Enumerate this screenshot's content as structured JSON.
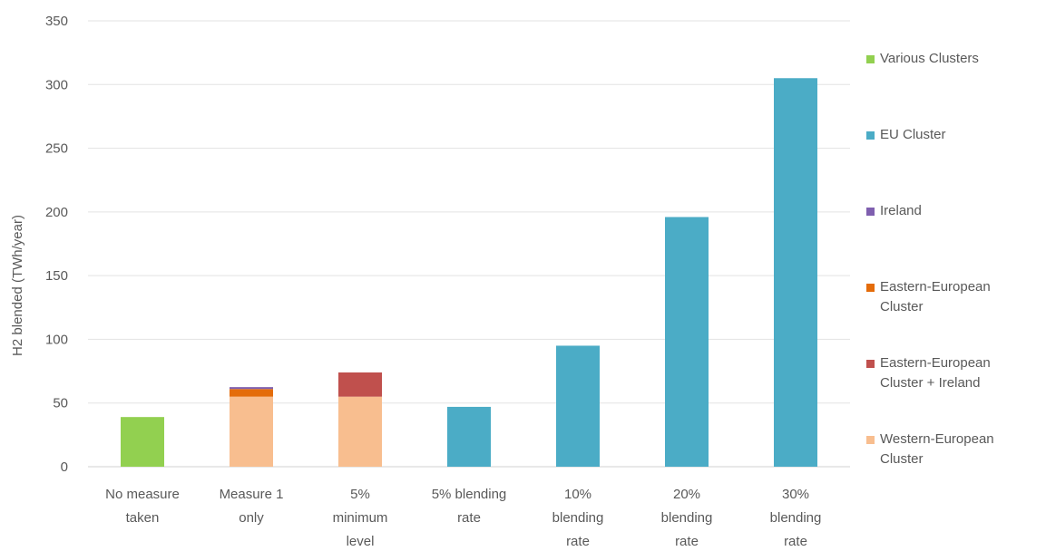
{
  "chart_data": {
    "type": "bar",
    "stacked": true,
    "ylabel": "H2 blended (TWh/year)",
    "ylim": [
      0,
      350
    ],
    "yticks": [
      0,
      50,
      100,
      150,
      200,
      250,
      300,
      350
    ],
    "grid": true,
    "legend_position": "right",
    "categories": [
      [
        "No measure",
        "taken"
      ],
      [
        "Measure 1",
        "only"
      ],
      [
        "5%",
        "minimum",
        "level"
      ],
      [
        "5% blending",
        "rate"
      ],
      [
        "10%",
        "blending",
        "rate"
      ],
      [
        "20%",
        "blending",
        "rate"
      ],
      [
        "30%",
        "blending",
        "rate"
      ]
    ],
    "series": [
      {
        "name": "Western-European Cluster",
        "color": "#F8BE8F",
        "values": [
          0,
          55,
          55,
          0,
          0,
          0,
          0
        ]
      },
      {
        "name": "Eastern-European Cluster + Ireland",
        "color": "#C0504D",
        "values": [
          0,
          0,
          19,
          0,
          0,
          0,
          0
        ]
      },
      {
        "name": "Eastern-European Cluster",
        "color": "#E46C0A",
        "values": [
          0,
          6,
          0,
          0,
          0,
          0,
          0
        ]
      },
      {
        "name": "Ireland",
        "color": "#7F5FAF",
        "values": [
          0,
          1.5,
          0,
          0,
          0,
          0,
          0
        ]
      },
      {
        "name": "EU Cluster",
        "color": "#4BACC6",
        "values": [
          0,
          0,
          0,
          47,
          95,
          196,
          305
        ]
      },
      {
        "name": "Various Clusters",
        "color": "#92D050",
        "values": [
          39,
          0,
          0,
          0,
          0,
          0,
          0
        ]
      }
    ],
    "legend": [
      {
        "label": [
          "Various Clusters"
        ],
        "color": "#92D050"
      },
      {
        "label": [
          "EU Cluster"
        ],
        "color": "#4BACC6"
      },
      {
        "label": [
          "Ireland"
        ],
        "color": "#7F5FAF"
      },
      {
        "label": [
          "Eastern-European",
          "Cluster"
        ],
        "color": "#E46C0A"
      },
      {
        "label": [
          "Eastern-European",
          "Cluster + Ireland"
        ],
        "color": "#C0504D"
      },
      {
        "label": [
          "Western-European",
          "Cluster"
        ],
        "color": "#F8BE8F"
      }
    ]
  }
}
